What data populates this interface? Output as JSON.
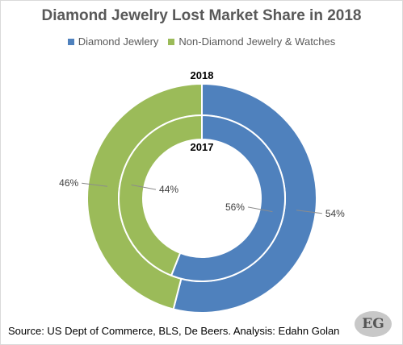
{
  "chart_data": {
    "type": "pie",
    "variant": "nested-doughnut",
    "title": "Diamond Jewelry Lost Market Share in 2018",
    "legend": {
      "placement": "top",
      "entries": [
        "Diamond Jewlery",
        "Non-Diamond Jewelry & Watches"
      ]
    },
    "categories": [
      "Diamond Jewlery",
      "Non-Diamond Jewelry & Watches"
    ],
    "colors": [
      "#4f81bd",
      "#9bbb59"
    ],
    "series": [
      {
        "name": "2018",
        "ring": "outer",
        "values": [
          54,
          46
        ],
        "labels": [
          "54%",
          "46%"
        ]
      },
      {
        "name": "2017",
        "ring": "inner",
        "values": [
          56,
          44
        ],
        "labels": [
          "56%",
          "44%"
        ]
      }
    ]
  },
  "source": "Source: US Dept of Commerce, BLS, De Beers. Analysis: Edahn Golan",
  "logo": "EG"
}
